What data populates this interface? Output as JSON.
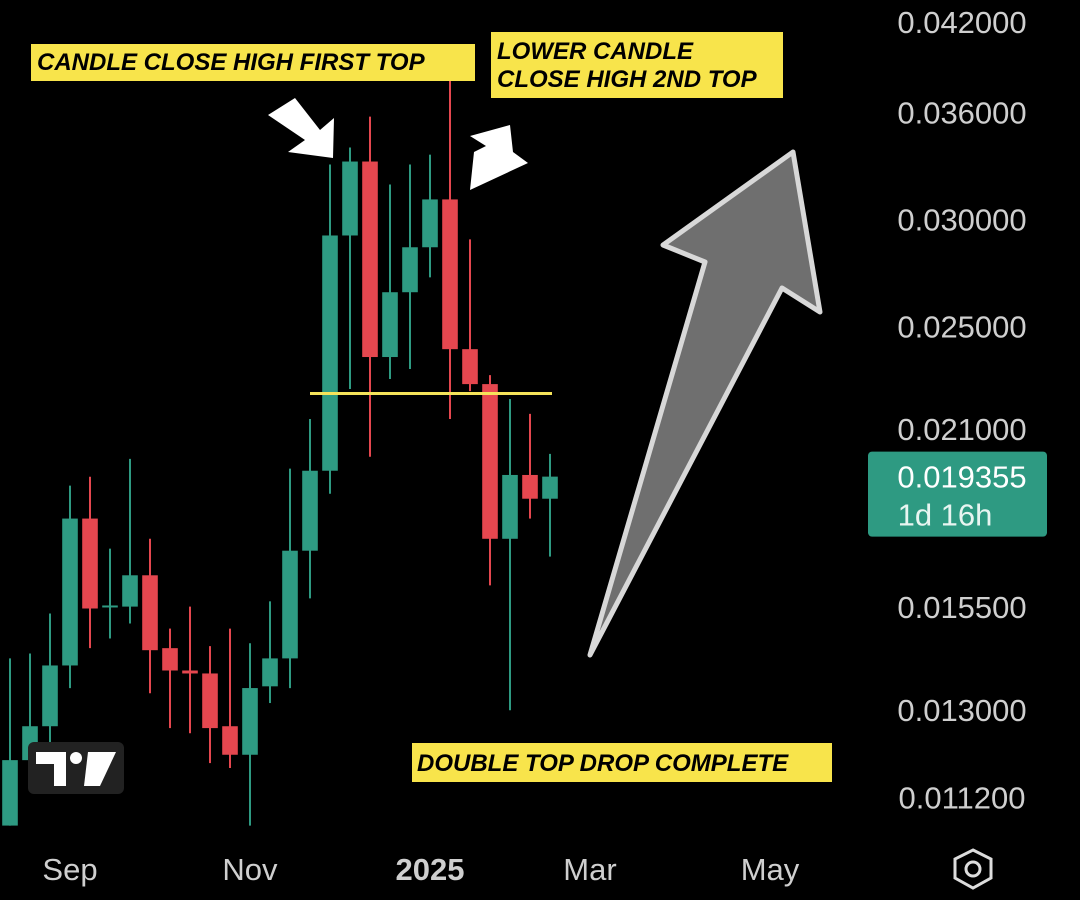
{
  "chart_data": {
    "type": "candlestick",
    "log_scale": true,
    "grid": false,
    "up_color": "#2e9a82",
    "down_color": "#e5474f",
    "x": [
      0,
      1,
      2,
      3,
      4,
      5,
      6,
      7,
      8,
      9,
      10,
      11,
      12,
      13,
      14,
      15,
      16,
      17,
      18,
      19,
      20,
      21,
      22,
      23,
      24,
      25,
      26,
      27
    ],
    "open": [
      0.01068,
      0.01194,
      0.01265,
      0.01403,
      0.01802,
      0.01549,
      0.01551,
      0.01636,
      0.01445,
      0.01391,
      0.01384,
      0.01265,
      0.01205,
      0.01354,
      0.0142,
      0.01706,
      0.01955,
      0.02919,
      0.03311,
      0.02373,
      0.0265,
      0.02861,
      0.03104,
      0.02405,
      0.02266,
      0.01741,
      0.01941,
      0.01864
    ],
    "high": [
      0.0142,
      0.01432,
      0.01533,
      0.01906,
      0.01935,
      0.01712,
      0.01995,
      0.01741,
      0.01494,
      0.01551,
      0.0145,
      0.01494,
      0.01457,
      0.01565,
      0.01962,
      0.02135,
      0.03294,
      0.03391,
      0.03574,
      0.03184,
      0.03294,
      0.0335,
      0.03884,
      0.029,
      0.02301,
      0.02209,
      0.02154,
      0.02012
    ],
    "low": [
      0.01068,
      0.01139,
      0.01229,
      0.0135,
      0.01445,
      0.01469,
      0.01507,
      0.01338,
      0.01261,
      0.0125,
      0.01188,
      0.01178,
      0.01068,
      0.01316,
      0.0135,
      0.01573,
      0.0188,
      0.02247,
      0.02002,
      0.02286,
      0.02325,
      0.02718,
      0.02135,
      0.02239,
      0.01608,
      0.013,
      0.01802,
      0.01689
    ],
    "close": [
      0.01194,
      0.01265,
      0.01403,
      0.01802,
      0.01546,
      0.01554,
      0.01636,
      0.0144,
      0.01391,
      0.01384,
      0.01261,
      0.01205,
      0.0135,
      0.0142,
      0.01706,
      0.01955,
      0.02919,
      0.03311,
      0.02373,
      0.0265,
      0.02861,
      0.03104,
      0.02405,
      0.02266,
      0.01741,
      0.01941,
      0.01864,
      0.019355
    ],
    "xlim": [
      -0.5,
      42.5
    ],
    "xticks": [
      {
        "value": 3,
        "label": "Sep"
      },
      {
        "value": 12,
        "label": "Nov"
      },
      {
        "value": 21,
        "label": "2025"
      },
      {
        "value": 29,
        "label": "Mar"
      },
      {
        "value": 38,
        "label": "May"
      }
    ],
    "ylim": [
      0.0106,
      0.0436
    ],
    "yticks": [
      {
        "value": 0.0112,
        "label": "0.011200"
      },
      {
        "value": 0.013,
        "label": "0.013000"
      },
      {
        "value": 0.0155,
        "label": "0.015500"
      },
      {
        "value": 0.021,
        "label": "0.021000"
      },
      {
        "value": 0.025,
        "label": "0.025000"
      },
      {
        "value": 0.03,
        "label": "0.030000"
      },
      {
        "value": 0.036,
        "label": "0.036000"
      },
      {
        "value": 0.042,
        "label": "0.042000"
      }
    ],
    "last_price": {
      "value": 0.019355,
      "label": "0.019355"
    },
    "countdown": "1d 16h",
    "support_level": 0.0223,
    "annotations": {
      "first_top": "CANDLE CLOSE HIGH FIRST TOP",
      "second_top": [
        "LOWER CANDLE",
        "CLOSE HIGH 2ND TOP"
      ],
      "drop": "DOUBLE TOP DROP COMPLETE"
    }
  }
}
